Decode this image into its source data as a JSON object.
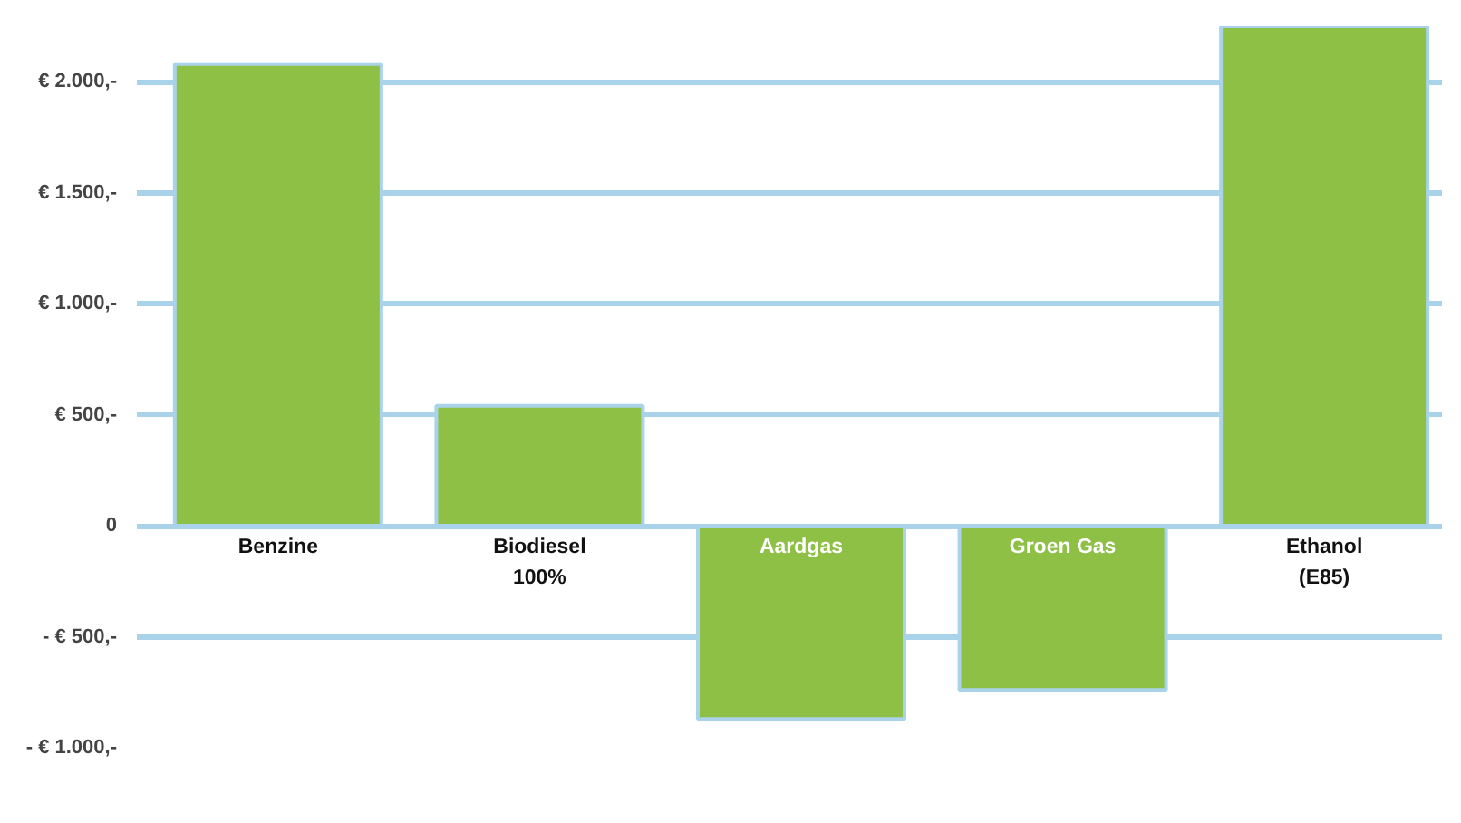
{
  "chart_data": {
    "type": "bar",
    "categories": [
      "Benzine",
      "Biodiesel\n100%",
      "Aardgas",
      "Groen Gas",
      "Ethanol\n(E85)"
    ],
    "values": [
      2080,
      540,
      -870,
      -740,
      2250
    ],
    "color": "#8dc044",
    "yticks": [
      {
        "value": -1000,
        "label": "- € 1.000,-"
      },
      {
        "value": -500,
        "label": "- € 500,-"
      },
      0,
      {
        "value": 500,
        "label": "€ 500,-"
      },
      {
        "value": 1000,
        "label": "€ 1.000,-"
      },
      {
        "value": 1500,
        "label": "€ 1.500,-"
      },
      {
        "value": 2000,
        "label": "€ 2.000,-"
      }
    ],
    "ylim": [
      -1000,
      2250
    ],
    "grid": "y",
    "tick_labels": "y"
  }
}
